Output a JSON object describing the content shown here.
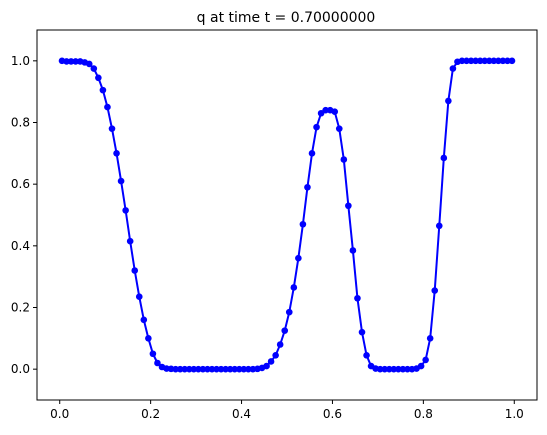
{
  "chart_data": {
    "type": "line",
    "title": "q at time t =     0.70000000",
    "xlabel": "",
    "ylabel": "",
    "xlim": [
      -0.05,
      1.05
    ],
    "ylim": [
      -0.1,
      1.1
    ],
    "grid": false,
    "x_ticks": [
      0.0,
      0.2,
      0.4,
      0.6,
      0.8,
      1.0
    ],
    "y_ticks": [
      0.0,
      0.2,
      0.4,
      0.6,
      0.8,
      1.0
    ],
    "x_tick_labels": [
      "0.0",
      "0.2",
      "0.4",
      "0.6",
      "0.8",
      "1.0"
    ],
    "y_tick_labels": [
      "0.0",
      "0.2",
      "0.4",
      "0.6",
      "0.8",
      "1.0"
    ],
    "series": [
      {
        "color": "#0000ff",
        "marker": "circle",
        "x": [
          0.005,
          0.015,
          0.025,
          0.035,
          0.045,
          0.055,
          0.065,
          0.075,
          0.085,
          0.095,
          0.105,
          0.115,
          0.125,
          0.135,
          0.145,
          0.155,
          0.165,
          0.175,
          0.185,
          0.195,
          0.205,
          0.215,
          0.225,
          0.235,
          0.245,
          0.255,
          0.265,
          0.275,
          0.285,
          0.295,
          0.305,
          0.315,
          0.325,
          0.335,
          0.345,
          0.355,
          0.365,
          0.375,
          0.385,
          0.395,
          0.405,
          0.415,
          0.425,
          0.435,
          0.445,
          0.455,
          0.465,
          0.475,
          0.485,
          0.495,
          0.505,
          0.515,
          0.525,
          0.535,
          0.545,
          0.555,
          0.565,
          0.575,
          0.585,
          0.595,
          0.605,
          0.615,
          0.625,
          0.635,
          0.645,
          0.655,
          0.665,
          0.675,
          0.685,
          0.695,
          0.705,
          0.715,
          0.725,
          0.735,
          0.745,
          0.755,
          0.765,
          0.775,
          0.785,
          0.795,
          0.805,
          0.815,
          0.825,
          0.835,
          0.845,
          0.855,
          0.865,
          0.875,
          0.885,
          0.895,
          0.905,
          0.915,
          0.925,
          0.935,
          0.945,
          0.955,
          0.965,
          0.975,
          0.985,
          0.995
        ],
        "y": [
          1.0,
          0.998,
          0.998,
          0.998,
          0.998,
          0.995,
          0.99,
          0.975,
          0.945,
          0.905,
          0.85,
          0.78,
          0.7,
          0.61,
          0.515,
          0.415,
          0.32,
          0.235,
          0.16,
          0.1,
          0.05,
          0.02,
          0.007,
          0.002,
          0.001,
          0.0,
          0.0,
          0.0,
          0.0,
          0.0,
          0.0,
          0.0,
          0.0,
          0.0,
          0.0,
          0.0,
          0.0,
          0.0,
          0.0,
          0.0,
          0.0,
          0.0,
          0.0,
          0.001,
          0.004,
          0.01,
          0.025,
          0.045,
          0.08,
          0.125,
          0.185,
          0.265,
          0.36,
          0.47,
          0.59,
          0.7,
          0.785,
          0.83,
          0.84,
          0.84,
          0.835,
          0.78,
          0.68,
          0.53,
          0.385,
          0.23,
          0.12,
          0.045,
          0.01,
          0.002,
          0.0,
          0.0,
          0.0,
          0.0,
          0.0,
          0.0,
          0.0,
          0.0,
          0.002,
          0.01,
          0.03,
          0.1,
          0.255,
          0.465,
          0.685,
          0.87,
          0.975,
          0.997,
          1.0,
          1.0,
          1.0,
          1.0,
          1.0,
          1.0,
          1.0,
          1.0,
          1.0,
          1.0,
          1.0,
          1.0
        ]
      }
    ]
  }
}
